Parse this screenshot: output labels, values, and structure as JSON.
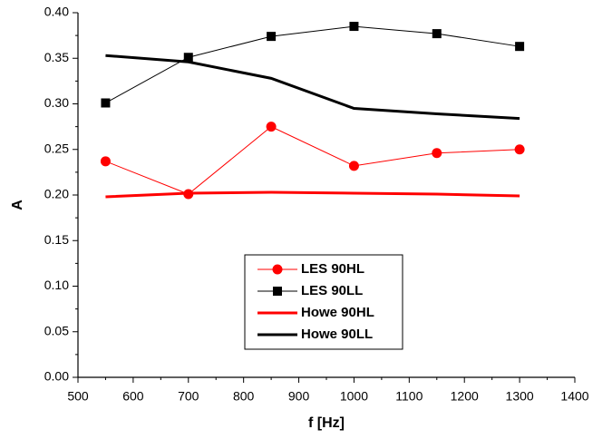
{
  "chart_data": {
    "type": "line",
    "x_label": "f [Hz]",
    "y_label": "A",
    "x": [
      550,
      700,
      850,
      1000,
      1150,
      1300
    ],
    "series": [
      {
        "name": "LES 90HL",
        "color": "#ff0000",
        "marker": "circle",
        "line_width": 1,
        "values": [
          0.237,
          0.201,
          0.275,
          0.232,
          0.246,
          0.25
        ]
      },
      {
        "name": "LES 90LL",
        "color": "#000000",
        "marker": "square",
        "line_width": 1,
        "values": [
          0.301,
          0.351,
          0.374,
          0.385,
          0.377,
          0.363
        ]
      },
      {
        "name": "Howe 90HL",
        "color": "#ff0000",
        "line_width": 3,
        "values": [
          0.198,
          0.202,
          0.203,
          0.202,
          0.201,
          0.199
        ]
      },
      {
        "name": "Howe 90LL",
        "color": "#000000",
        "line_width": 3,
        "values": [
          0.353,
          0.346,
          0.328,
          0.295,
          0.289,
          0.284
        ]
      }
    ],
    "xlim": [
      500,
      1400
    ],
    "ylim": [
      0,
      0.4
    ],
    "xticks": [
      500,
      600,
      700,
      800,
      900,
      1000,
      1100,
      1200,
      1300,
      1400
    ],
    "yticks": [
      {
        "value": 0,
        "label": "0.00"
      },
      0.05,
      {
        "value": 0.1,
        "label": "0.10"
      },
      0.15,
      {
        "value": 0.2,
        "label": "0.20"
      },
      0.25,
      {
        "value": 0.3,
        "label": "0.30"
      },
      0.35,
      {
        "value": 0.4,
        "label": "0.40"
      }
    ],
    "grid": false,
    "legend": "lower center"
  }
}
